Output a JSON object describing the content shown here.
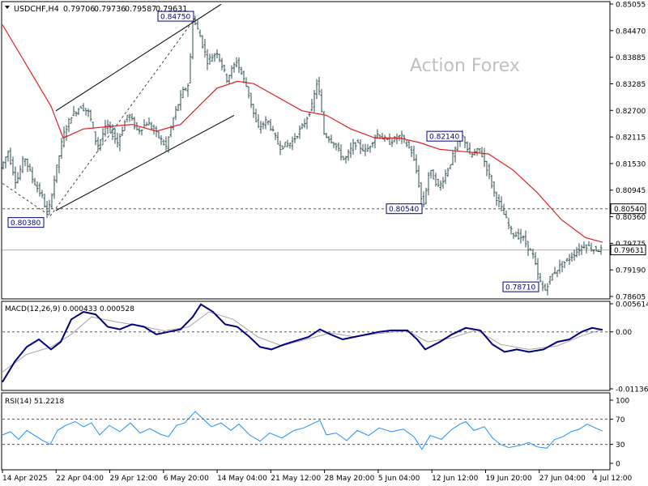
{
  "chart_data": {
    "type": "candlestick",
    "symbol_header": "USDCHF,H4",
    "ohlc_readout": [
      "0.79706",
      "0.79736",
      "0.79587",
      "0.79631"
    ],
    "watermark": "Action Forex",
    "x_ticks": [
      "14 Apr 2025",
      "22 Apr 04:00",
      "29 Apr 12:00",
      "6 May 20:00",
      "14 May 04:00",
      "21 May 12:00",
      "28 May 20:00",
      "5 Jun 04:00",
      "12 Jun 12:00",
      "19 Jun 20:00",
      "27 Jun 04:00",
      "4 Jul 12:00"
    ],
    "price_panel": {
      "ylim": [
        0.78605,
        0.85055
      ],
      "y_ticks": [
        "0.85055",
        "0.84470",
        "0.83885",
        "0.83285",
        "0.82700",
        "0.82115",
        "0.81530",
        "0.80945",
        "0.80360",
        "0.79775",
        "0.79190",
        "0.78605"
      ],
      "price_path": [
        {
          "x": 0,
          "y": 0.814
        },
        {
          "x": 10,
          "y": 0.818
        },
        {
          "x": 20,
          "y": 0.811
        },
        {
          "x": 30,
          "y": 0.817
        },
        {
          "x": 40,
          "y": 0.812
        },
        {
          "x": 52,
          "y": 0.808
        },
        {
          "x": 59,
          "y": 0.8038
        },
        {
          "x": 66,
          "y": 0.811
        },
        {
          "x": 78,
          "y": 0.8215
        },
        {
          "x": 88,
          "y": 0.826
        },
        {
          "x": 100,
          "y": 0.828
        },
        {
          "x": 110,
          "y": 0.8265
        },
        {
          "x": 120,
          "y": 0.819
        },
        {
          "x": 132,
          "y": 0.824
        },
        {
          "x": 145,
          "y": 0.82
        },
        {
          "x": 158,
          "y": 0.8265
        },
        {
          "x": 170,
          "y": 0.8225
        },
        {
          "x": 182,
          "y": 0.8245
        },
        {
          "x": 195,
          "y": 0.8215
        },
        {
          "x": 205,
          "y": 0.819
        },
        {
          "x": 215,
          "y": 0.826
        },
        {
          "x": 225,
          "y": 0.831
        },
        {
          "x": 233,
          "y": 0.833
        },
        {
          "x": 238,
          "y": 0.8475
        },
        {
          "x": 246,
          "y": 0.844
        },
        {
          "x": 256,
          "y": 0.838
        },
        {
          "x": 268,
          "y": 0.84
        },
        {
          "x": 280,
          "y": 0.834
        },
        {
          "x": 292,
          "y": 0.838
        },
        {
          "x": 305,
          "y": 0.832
        },
        {
          "x": 318,
          "y": 0.823
        },
        {
          "x": 330,
          "y": 0.825
        },
        {
          "x": 345,
          "y": 0.819
        },
        {
          "x": 360,
          "y": 0.82
        },
        {
          "x": 375,
          "y": 0.824
        },
        {
          "x": 385,
          "y": 0.828
        },
        {
          "x": 392,
          "y": 0.834
        },
        {
          "x": 400,
          "y": 0.822
        },
        {
          "x": 412,
          "y": 0.82
        },
        {
          "x": 425,
          "y": 0.816
        },
        {
          "x": 438,
          "y": 0.82
        },
        {
          "x": 452,
          "y": 0.818
        },
        {
          "x": 465,
          "y": 0.822
        },
        {
          "x": 480,
          "y": 0.82
        },
        {
          "x": 495,
          "y": 0.8215
        },
        {
          "x": 508,
          "y": 0.818
        },
        {
          "x": 515,
          "y": 0.813
        },
        {
          "x": 522,
          "y": 0.8054
        },
        {
          "x": 530,
          "y": 0.814
        },
        {
          "x": 542,
          "y": 0.81
        },
        {
          "x": 555,
          "y": 0.815
        },
        {
          "x": 565,
          "y": 0.82
        },
        {
          "x": 572,
          "y": 0.8214
        },
        {
          "x": 580,
          "y": 0.817
        },
        {
          "x": 592,
          "y": 0.8185
        },
        {
          "x": 600,
          "y": 0.815
        },
        {
          "x": 610,
          "y": 0.809
        },
        {
          "x": 620,
          "y": 0.805
        },
        {
          "x": 632,
          "y": 0.8
        },
        {
          "x": 645,
          "y": 0.799
        },
        {
          "x": 658,
          "y": 0.795
        },
        {
          "x": 665,
          "y": 0.79
        },
        {
          "x": 672,
          "y": 0.7871
        },
        {
          "x": 680,
          "y": 0.7905
        },
        {
          "x": 690,
          "y": 0.7925
        },
        {
          "x": 700,
          "y": 0.794
        },
        {
          "x": 712,
          "y": 0.796
        },
        {
          "x": 722,
          "y": 0.7975
        },
        {
          "x": 732,
          "y": 0.7965
        },
        {
          "x": 741,
          "y": 0.79631
        }
      ],
      "ma_line": [
        {
          "x": 0,
          "y": 0.846
        },
        {
          "x": 20,
          "y": 0.84
        },
        {
          "x": 40,
          "y": 0.834
        },
        {
          "x": 60,
          "y": 0.828
        },
        {
          "x": 75,
          "y": 0.821
        },
        {
          "x": 100,
          "y": 0.823
        },
        {
          "x": 130,
          "y": 0.8235
        },
        {
          "x": 160,
          "y": 0.824
        },
        {
          "x": 190,
          "y": 0.8225
        },
        {
          "x": 220,
          "y": 0.824
        },
        {
          "x": 245,
          "y": 0.8285
        },
        {
          "x": 265,
          "y": 0.832
        },
        {
          "x": 290,
          "y": 0.8335
        },
        {
          "x": 310,
          "y": 0.833
        },
        {
          "x": 340,
          "y": 0.83
        },
        {
          "x": 370,
          "y": 0.827
        },
        {
          "x": 400,
          "y": 0.826
        },
        {
          "x": 430,
          "y": 0.823
        },
        {
          "x": 460,
          "y": 0.821
        },
        {
          "x": 490,
          "y": 0.821
        },
        {
          "x": 515,
          "y": 0.82
        },
        {
          "x": 540,
          "y": 0.8185
        },
        {
          "x": 570,
          "y": 0.818
        },
        {
          "x": 600,
          "y": 0.8175
        },
        {
          "x": 630,
          "y": 0.814
        },
        {
          "x": 660,
          "y": 0.809
        },
        {
          "x": 690,
          "y": 0.803
        },
        {
          "x": 720,
          "y": 0.799
        },
        {
          "x": 741,
          "y": 0.798
        }
      ],
      "channel_lines": [
        {
          "from": {
            "x": 66,
            "y": 0.827
          },
          "to": {
            "x": 270,
            "y": 0.8505
          }
        },
        {
          "from": {
            "x": 66,
            "y": 0.805
          },
          "to": {
            "x": 286,
            "y": 0.826
          }
        }
      ],
      "dashed_trendlines": [
        {
          "from": {
            "x": 0,
            "y": 0.811
          },
          "to": {
            "x": 59,
            "y": 0.8038
          }
        },
        {
          "from": {
            "x": 59,
            "y": 0.8038
          },
          "to": {
            "x": 238,
            "y": 0.8475
          }
        }
      ],
      "support_line": {
        "value": 0.8054,
        "label": "0.80540"
      },
      "current_price": {
        "value": 0.79631,
        "label": "0.79631"
      },
      "annotations": [
        {
          "label": "0.84750",
          "x": 238,
          "y": 0.8475
        },
        {
          "label": "0.80380",
          "x": 59,
          "y": 0.8038
        },
        {
          "label": "0.80540",
          "x": 522,
          "y": 0.8054
        },
        {
          "label": "0.82140",
          "x": 572,
          "y": 0.8214
        },
        {
          "label": "0.78710",
          "x": 672,
          "y": 0.7871
        }
      ]
    },
    "macd_panel": {
      "label": "MACD(12,26,9) 0.000433 0.000528",
      "ylim": [
        -0.011365,
        0.005614
      ],
      "y_ticks": [
        "0.005614",
        "0.00",
        "-0.011365"
      ],
      "macd": [
        {
          "x": 0,
          "y": -0.01
        },
        {
          "x": 15,
          "y": -0.006
        },
        {
          "x": 30,
          "y": -0.003
        },
        {
          "x": 45,
          "y": -0.0015
        },
        {
          "x": 60,
          "y": -0.0035
        },
        {
          "x": 72,
          "y": -0.002
        },
        {
          "x": 85,
          "y": 0.0025
        },
        {
          "x": 100,
          "y": 0.004
        },
        {
          "x": 115,
          "y": 0.0035
        },
        {
          "x": 130,
          "y": 0.001
        },
        {
          "x": 145,
          "y": 0.0005
        },
        {
          "x": 160,
          "y": 0.0015
        },
        {
          "x": 175,
          "y": 0.001
        },
        {
          "x": 190,
          "y": -0.0005
        },
        {
          "x": 205,
          "y": 0.0
        },
        {
          "x": 220,
          "y": 0.0005
        },
        {
          "x": 235,
          "y": 0.003
        },
        {
          "x": 245,
          "y": 0.0055
        },
        {
          "x": 260,
          "y": 0.004
        },
        {
          "x": 275,
          "y": 0.0015
        },
        {
          "x": 290,
          "y": 0.001
        },
        {
          "x": 305,
          "y": -0.001
        },
        {
          "x": 318,
          "y": -0.003
        },
        {
          "x": 332,
          "y": -0.0035
        },
        {
          "x": 348,
          "y": -0.0025
        },
        {
          "x": 362,
          "y": -0.0018
        },
        {
          "x": 378,
          "y": -0.001
        },
        {
          "x": 392,
          "y": 0.0005
        },
        {
          "x": 405,
          "y": -0.0005
        },
        {
          "x": 420,
          "y": -0.0015
        },
        {
          "x": 435,
          "y": -0.001
        },
        {
          "x": 450,
          "y": -0.0005
        },
        {
          "x": 465,
          "y": 0.0
        },
        {
          "x": 480,
          "y": 0.0003
        },
        {
          "x": 500,
          "y": 0.0003
        },
        {
          "x": 512,
          "y": -0.0015
        },
        {
          "x": 522,
          "y": -0.0035
        },
        {
          "x": 540,
          "y": -0.002
        },
        {
          "x": 555,
          "y": -0.0005
        },
        {
          "x": 572,
          "y": 0.0008
        },
        {
          "x": 590,
          "y": 0.0003
        },
        {
          "x": 605,
          "y": -0.0025
        },
        {
          "x": 620,
          "y": -0.004
        },
        {
          "x": 635,
          "y": -0.0035
        },
        {
          "x": 650,
          "y": -0.004
        },
        {
          "x": 668,
          "y": -0.0035
        },
        {
          "x": 685,
          "y": -0.002
        },
        {
          "x": 700,
          "y": -0.0015
        },
        {
          "x": 715,
          "y": 0.0
        },
        {
          "x": 728,
          "y": 0.0008
        },
        {
          "x": 741,
          "y": 0.0004
        }
      ],
      "signal": [
        {
          "x": 0,
          "y": -0.008
        },
        {
          "x": 30,
          "y": -0.0045
        },
        {
          "x": 60,
          "y": -0.003
        },
        {
          "x": 85,
          "y": -0.0005
        },
        {
          "x": 110,
          "y": 0.003
        },
        {
          "x": 140,
          "y": 0.002
        },
        {
          "x": 170,
          "y": 0.0012
        },
        {
          "x": 200,
          "y": 0.0002
        },
        {
          "x": 230,
          "y": 0.001
        },
        {
          "x": 255,
          "y": 0.004
        },
        {
          "x": 285,
          "y": 0.0025
        },
        {
          "x": 315,
          "y": -0.001
        },
        {
          "x": 345,
          "y": -0.0028
        },
        {
          "x": 375,
          "y": -0.0015
        },
        {
          "x": 405,
          "y": -0.0002
        },
        {
          "x": 435,
          "y": -0.001
        },
        {
          "x": 465,
          "y": -0.0003
        },
        {
          "x": 500,
          "y": 0.0002
        },
        {
          "x": 525,
          "y": -0.002
        },
        {
          "x": 555,
          "y": -0.0012
        },
        {
          "x": 585,
          "y": 0.0004
        },
        {
          "x": 615,
          "y": -0.0025
        },
        {
          "x": 650,
          "y": -0.0035
        },
        {
          "x": 685,
          "y": -0.0028
        },
        {
          "x": 715,
          "y": -0.0008
        },
        {
          "x": 741,
          "y": 0.0005
        }
      ]
    },
    "rsi_panel": {
      "label": "RSI(14) 51.2218",
      "ylim": [
        0,
        100
      ],
      "y_ticks": [
        "100",
        "70",
        "30",
        "0"
      ],
      "levels": [
        70,
        30
      ],
      "rsi": [
        {
          "x": 0,
          "y": 45
        },
        {
          "x": 10,
          "y": 50
        },
        {
          "x": 20,
          "y": 38
        },
        {
          "x": 30,
          "y": 52
        },
        {
          "x": 40,
          "y": 44
        },
        {
          "x": 50,
          "y": 36
        },
        {
          "x": 59,
          "y": 30
        },
        {
          "x": 68,
          "y": 52
        },
        {
          "x": 78,
          "y": 60
        },
        {
          "x": 90,
          "y": 66
        },
        {
          "x": 100,
          "y": 58
        },
        {
          "x": 110,
          "y": 64
        },
        {
          "x": 120,
          "y": 45
        },
        {
          "x": 132,
          "y": 60
        },
        {
          "x": 145,
          "y": 50
        },
        {
          "x": 158,
          "y": 64
        },
        {
          "x": 170,
          "y": 48
        },
        {
          "x": 182,
          "y": 55
        },
        {
          "x": 195,
          "y": 46
        },
        {
          "x": 205,
          "y": 42
        },
        {
          "x": 215,
          "y": 60
        },
        {
          "x": 225,
          "y": 64
        },
        {
          "x": 238,
          "y": 82
        },
        {
          "x": 248,
          "y": 70
        },
        {
          "x": 258,
          "y": 58
        },
        {
          "x": 270,
          "y": 64
        },
        {
          "x": 282,
          "y": 52
        },
        {
          "x": 292,
          "y": 62
        },
        {
          "x": 305,
          "y": 45
        },
        {
          "x": 318,
          "y": 35
        },
        {
          "x": 330,
          "y": 48
        },
        {
          "x": 345,
          "y": 40
        },
        {
          "x": 360,
          "y": 52
        },
        {
          "x": 372,
          "y": 56
        },
        {
          "x": 385,
          "y": 64
        },
        {
          "x": 392,
          "y": 68
        },
        {
          "x": 400,
          "y": 45
        },
        {
          "x": 412,
          "y": 48
        },
        {
          "x": 425,
          "y": 36
        },
        {
          "x": 438,
          "y": 52
        },
        {
          "x": 452,
          "y": 44
        },
        {
          "x": 465,
          "y": 56
        },
        {
          "x": 480,
          "y": 50
        },
        {
          "x": 495,
          "y": 54
        },
        {
          "x": 508,
          "y": 42
        },
        {
          "x": 518,
          "y": 22
        },
        {
          "x": 528,
          "y": 44
        },
        {
          "x": 542,
          "y": 38
        },
        {
          "x": 555,
          "y": 54
        },
        {
          "x": 565,
          "y": 62
        },
        {
          "x": 572,
          "y": 66
        },
        {
          "x": 582,
          "y": 52
        },
        {
          "x": 595,
          "y": 58
        },
        {
          "x": 605,
          "y": 40
        },
        {
          "x": 615,
          "y": 30
        },
        {
          "x": 625,
          "y": 25
        },
        {
          "x": 638,
          "y": 28
        },
        {
          "x": 650,
          "y": 33
        },
        {
          "x": 660,
          "y": 26
        },
        {
          "x": 672,
          "y": 24
        },
        {
          "x": 682,
          "y": 38
        },
        {
          "x": 692,
          "y": 42
        },
        {
          "x": 702,
          "y": 50
        },
        {
          "x": 712,
          "y": 54
        },
        {
          "x": 722,
          "y": 62
        },
        {
          "x": 732,
          "y": 56
        },
        {
          "x": 741,
          "y": 51
        }
      ]
    },
    "colors": {
      "candle": "#2f4f4f",
      "ma": "#e02020",
      "macd": "#000080",
      "signal": "#b0a0a0",
      "rsi": "#1e90ff",
      "grid_dashed": "#555555",
      "current_line": "#b0b0b0",
      "watermark": "#c0c0c0"
    }
  }
}
